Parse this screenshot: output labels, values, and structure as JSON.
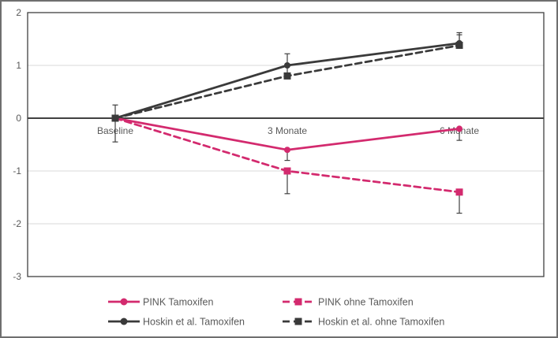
{
  "figure": {
    "background": "#ffffff",
    "border_color": "#6f6f6f"
  },
  "colors": {
    "axis_text": "#595959",
    "gridline": "#d9d9d9",
    "zero_line": "#404040",
    "plot_border": "#404040",
    "error_bar": "#404040",
    "pink": "#d32a6e",
    "black": "#3a3a3a"
  },
  "chart_data": {
    "type": "line",
    "title": "",
    "xlabel": "",
    "ylabel": "",
    "categories": [
      "Baseline",
      "3 Monate",
      "6 Monate"
    ],
    "series": [
      {
        "name": "PINK Tamoxifen",
        "color": "#d32a6e",
        "line": "solid",
        "marker": "circle",
        "values": [
          0,
          -0.6,
          -0.2
        ],
        "err_up": [
          0,
          0,
          0
        ],
        "err_down": [
          0,
          0.2,
          0.22
        ]
      },
      {
        "name": "PINK ohne Tamoxifen",
        "color": "#d32a6e",
        "line": "dashed",
        "marker": "square",
        "values": [
          0,
          -1.0,
          -1.4
        ],
        "err_up": [
          0,
          0,
          0
        ],
        "err_down": [
          0,
          0.43,
          0.4
        ]
      },
      {
        "name": "Hoskin et al. Tamoxifen",
        "color": "#3a3a3a",
        "line": "solid",
        "marker": "circle",
        "values": [
          0,
          1.0,
          1.42
        ],
        "err_up": [
          0,
          0.22,
          0.2
        ],
        "err_down": [
          0,
          0.18,
          0
        ]
      },
      {
        "name": "Hoskin et al. ohne Tamoxifen",
        "color": "#3a3a3a",
        "line": "dashed",
        "marker": "square",
        "values": [
          0,
          0.8,
          1.38
        ],
        "err_up": [
          0.25,
          0,
          0.2
        ],
        "err_down": [
          0.45,
          0,
          0
        ]
      }
    ],
    "ylim": [
      -3,
      2
    ],
    "yticks": [
      2,
      1,
      0,
      -1,
      -2,
      -3
    ],
    "grid": true,
    "legend_position": "bottom",
    "legend_layout": [
      [
        0,
        1
      ],
      [
        2,
        3
      ]
    ]
  }
}
